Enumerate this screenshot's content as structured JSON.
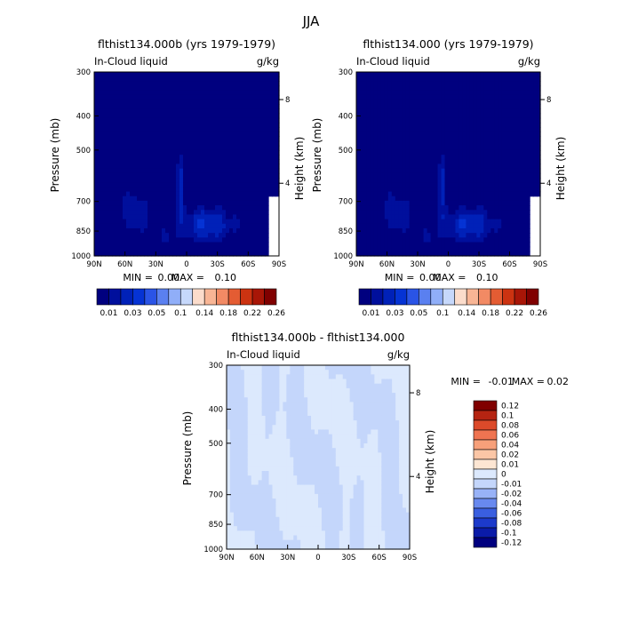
{
  "season_title": "JJA",
  "chart_data": [
    {
      "type": "heatmap",
      "id": "panel-a",
      "title": "flthist134.000b (yrs 1979-1979)",
      "variable": "In-Cloud liquid",
      "units": "g/kg",
      "xlabel": "",
      "ylabel": "Pressure (mb)",
      "ylabel_right": "Height (km)",
      "x_ticks": [
        "90N",
        "60N",
        "30N",
        "0",
        "30S",
        "60S",
        "90S"
      ],
      "y_ticks": [
        "300",
        "400",
        "500",
        "700",
        "850",
        "1000"
      ],
      "y_right_ticks": [
        "8",
        "4"
      ],
      "xlim": [
        90,
        -90
      ],
      "ylim": [
        1000,
        300
      ],
      "stats": {
        "min_label": "MIN =",
        "min_value": "0.00",
        "max_label": "MAX =",
        "max_value": "0.10"
      },
      "levels": [
        0.01,
        0.02,
        0.03,
        0.04,
        0.05,
        0.07,
        0.1,
        0.12,
        0.14,
        0.16,
        0.18,
        0.2,
        0.22,
        0.24,
        0.26
      ],
      "colorbar_labels": [
        "0.01",
        "0.03",
        "0.05",
        "0.1",
        "0.14",
        "0.18",
        "0.22",
        "0.26"
      ]
    },
    {
      "type": "heatmap",
      "id": "panel-b",
      "title": "flthist134.000 (yrs 1979-1979)",
      "variable": "In-Cloud liquid",
      "units": "g/kg",
      "xlabel": "",
      "ylabel": "Pressure (mb)",
      "ylabel_right": "Height (km)",
      "x_ticks": [
        "90N",
        "60N",
        "30N",
        "0",
        "30S",
        "60S",
        "90S"
      ],
      "y_ticks": [
        "300",
        "400",
        "500",
        "700",
        "850",
        "1000"
      ],
      "y_right_ticks": [
        "8",
        "4"
      ],
      "xlim": [
        90,
        -90
      ],
      "ylim": [
        1000,
        300
      ],
      "stats": {
        "min_label": "MIN =",
        "min_value": "0.00",
        "max_label": "MAX =",
        "max_value": "0.10"
      },
      "levels": [
        0.01,
        0.02,
        0.03,
        0.04,
        0.05,
        0.07,
        0.1,
        0.12,
        0.14,
        0.16,
        0.18,
        0.2,
        0.22,
        0.24,
        0.26
      ],
      "colorbar_labels": [
        "0.01",
        "0.03",
        "0.05",
        "0.1",
        "0.14",
        "0.18",
        "0.22",
        "0.26"
      ]
    },
    {
      "type": "heatmap",
      "id": "panel-diff",
      "title": "flthist134.000b - flthist134.000",
      "variable": "In-Cloud liquid",
      "units": "g/kg",
      "xlabel": "",
      "ylabel": "Pressure (mb)",
      "ylabel_right": "Height (km)",
      "x_ticks": [
        "90N",
        "60N",
        "30N",
        "0",
        "30S",
        "60S",
        "90S"
      ],
      "y_ticks": [
        "300",
        "400",
        "500",
        "700",
        "850",
        "1000"
      ],
      "y_right_ticks": [
        "8",
        "4"
      ],
      "xlim": [
        90,
        -90
      ],
      "ylim": [
        1000,
        300
      ],
      "stats": {
        "min_label": "MIN =",
        "min_value": "-0.01",
        "max_label": "MAX =",
        "max_value": "0.02"
      },
      "levels": [
        -0.12,
        -0.1,
        -0.08,
        -0.06,
        -0.04,
        -0.02,
        -0.01,
        0,
        0.01,
        0.02,
        0.04,
        0.06,
        0.08,
        0.1,
        0.12
      ],
      "colorbar_labels": [
        "0.12",
        "0.1",
        "0.08",
        "0.06",
        "0.04",
        "0.02",
        "0.01",
        "0",
        "-0.01",
        "-0.02",
        "-0.04",
        "-0.06",
        "-0.08",
        "-0.1",
        "-0.12"
      ]
    }
  ],
  "colors": {
    "sequential": [
      "#00007f",
      "#000f9c",
      "#0021b8",
      "#0533d4",
      "#2a54e6",
      "#5a80f0",
      "#90aef8",
      "#c6d8fb",
      "#fbdccb",
      "#f8b595",
      "#f28a64",
      "#e45c33",
      "#cc3311",
      "#a81607",
      "#800000"
    ],
    "diverging": [
      "#00007f",
      "#0a1ba8",
      "#1c3acb",
      "#3a5fe0",
      "#6889ef",
      "#98b2f7",
      "#c4d6fb",
      "#dce9fd",
      "#fde6d3",
      "#fbc6a6",
      "#f7a07a",
      "#ef7451",
      "#dc4a2a",
      "#b52412",
      "#800000"
    ]
  }
}
